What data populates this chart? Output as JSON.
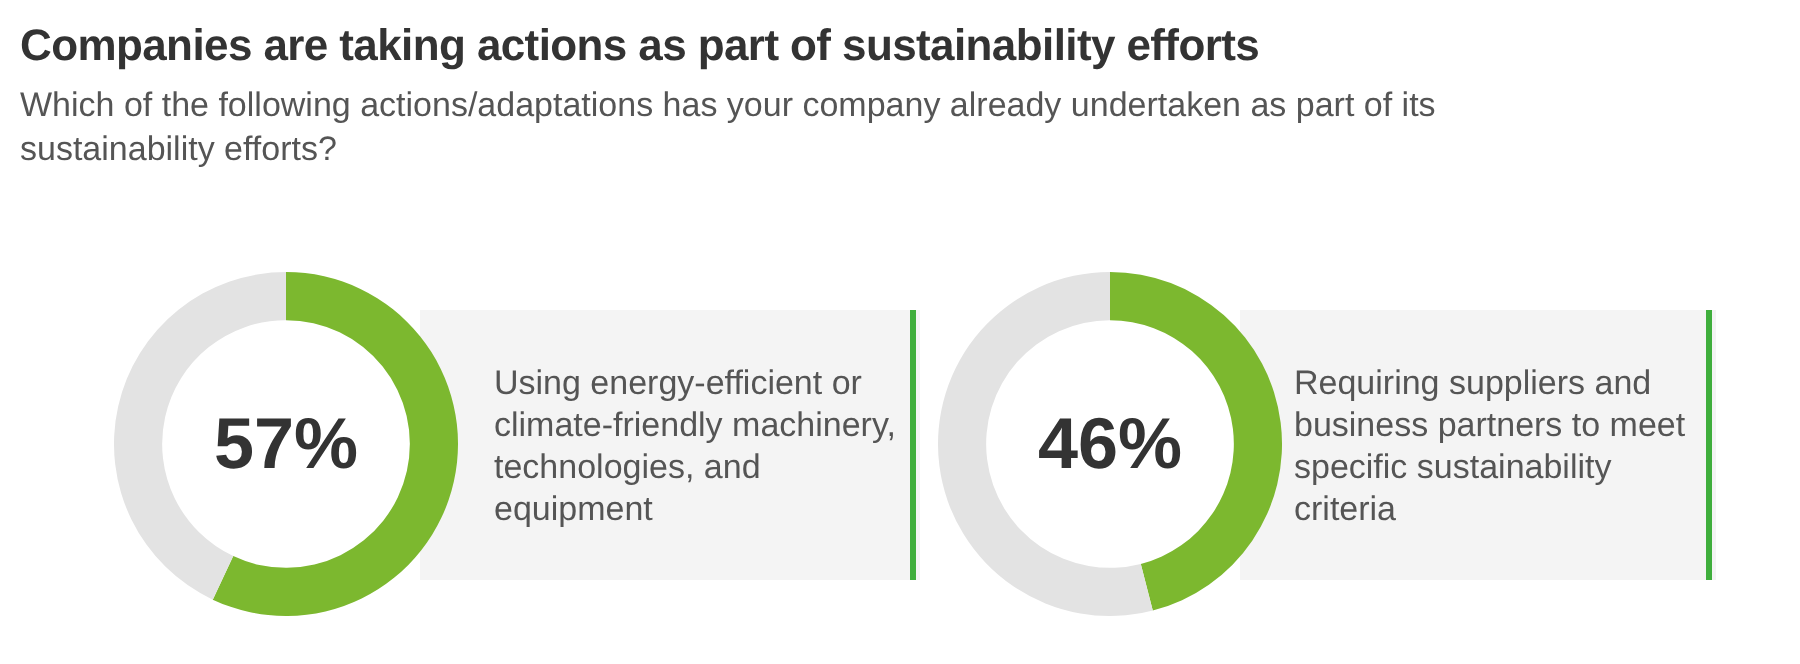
{
  "chart_data": [
    {
      "type": "donut",
      "title": "Companies are taking actions as part of sustainability efforts",
      "subtitle": "Which of the following actions/adaptations has your company already undertaken as part of its sustainability efforts?",
      "categories": [
        "Using energy-efficient or climate-friendly machinery, technologies, and equipment",
        null
      ],
      "values": [
        57,
        43
      ],
      "colors": [
        "#7cb82f",
        "#e3e3e3"
      ],
      "value_labels": [
        "57%",
        null
      ]
    },
    {
      "type": "donut",
      "categories": [
        "Requiring suppliers and business partners to meet specific sustainability criteria",
        null
      ],
      "values": [
        46,
        54
      ],
      "colors": [
        "#7cb82f",
        "#e3e3e3"
      ],
      "value_labels": [
        "46%",
        null
      ]
    }
  ]
}
